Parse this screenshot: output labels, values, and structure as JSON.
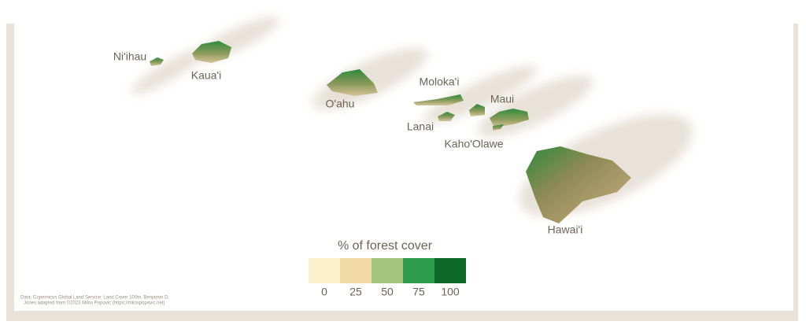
{
  "map": {
    "labels": [
      "Ni'ihau",
      "Kaua'i",
      "O'ahu",
      "Moloka'i",
      "Maui",
      "Lanai",
      "Kaho'Olawe",
      "Hawai'i"
    ],
    "legend": {
      "title": "% of forest cover",
      "ticks": [
        0,
        25,
        50,
        75,
        100
      ],
      "colors": [
        "#fbefcc",
        "#f1d9a6",
        "#a2c47d",
        "#2e9c4f",
        "#0d6a2b"
      ]
    },
    "caption": [
      "Data: Copernicus Global Land Service: Land Cover 100m. Benjamin D.",
      "Jones adapted from ©2023 Milos Popovic (https://milospopovic.net)"
    ]
  }
}
